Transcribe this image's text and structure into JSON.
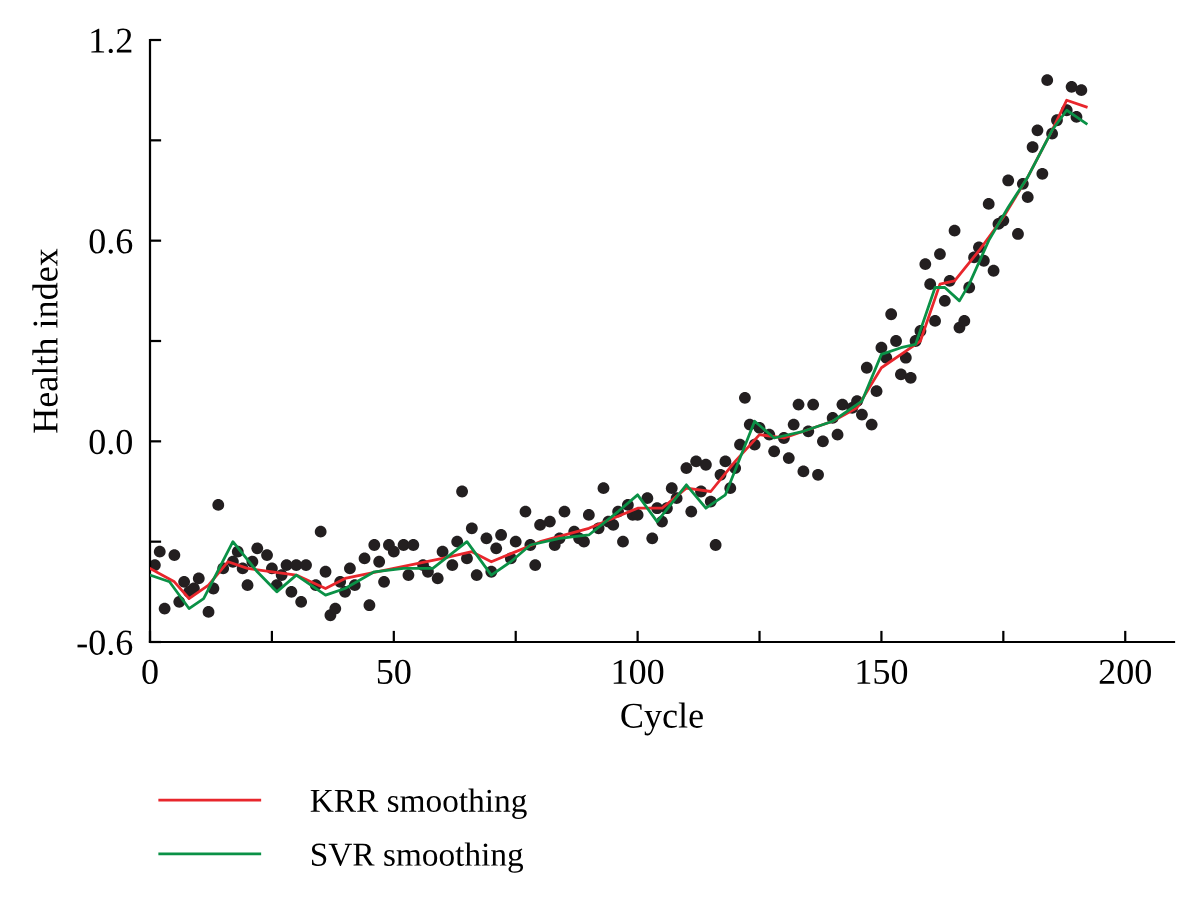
{
  "chart_data": {
    "type": "scatter",
    "xlabel": "Cycle",
    "ylabel": "Health index",
    "xlim": [
      0,
      210
    ],
    "ylim": [
      -0.6,
      1.2
    ],
    "xticks": [
      0,
      {
        "value": 25,
        "label": null
      },
      50,
      {
        "value": 75,
        "label": null
      },
      100,
      {
        "value": 125,
        "label": null
      },
      150,
      {
        "value": 175,
        "label": null
      },
      200
    ],
    "yticks": [
      {
        "value": -0.6,
        "label": "-0.6"
      },
      {
        "value": -0.3,
        "label": null
      },
      {
        "value": 0,
        "label": "0.0"
      },
      {
        "value": 0.3,
        "label": null
      },
      0.6,
      {
        "value": 0.9,
        "label": null
      },
      1.2
    ],
    "grid": false,
    "legend": "bottom left",
    "marker": "circle",
    "series": [
      {
        "color": "#231f20",
        "x": [
          1,
          2,
          3,
          5,
          6,
          7,
          8,
          9,
          10,
          12,
          13,
          14,
          15,
          17,
          18,
          19,
          20,
          21,
          22,
          24,
          25,
          26,
          27,
          28,
          29,
          30,
          31,
          32,
          34,
          35,
          36,
          37,
          38,
          39,
          40,
          41,
          42,
          44,
          45,
          46,
          47,
          48,
          49,
          50,
          52,
          53,
          54,
          56,
          57,
          59,
          60,
          62,
          63,
          64,
          65,
          66,
          67,
          69,
          70,
          71,
          72,
          74,
          75,
          77,
          78,
          79,
          80,
          82,
          83,
          84,
          85,
          87,
          88,
          89,
          90,
          92,
          93,
          94,
          95,
          96,
          97,
          98,
          99,
          100,
          102,
          103,
          104,
          105,
          106,
          107,
          108,
          110,
          111,
          112,
          113,
          114,
          115,
          116,
          117,
          118,
          119,
          120,
          121,
          122,
          123,
          124,
          125,
          127,
          128,
          130,
          131,
          132,
          133,
          134,
          135,
          136,
          137,
          138,
          140,
          141,
          142,
          144,
          145,
          146,
          147,
          148,
          149,
          150,
          151,
          152,
          153,
          154,
          155,
          156,
          157,
          158,
          159,
          160,
          161,
          162,
          163,
          164,
          165,
          166,
          167,
          168,
          169,
          170,
          171,
          172,
          173,
          174,
          175,
          176,
          178,
          179,
          180,
          181,
          182,
          183,
          184,
          185,
          186,
          188,
          189,
          190,
          191
        ],
        "values": [
          -0.37,
          -0.33,
          -0.5,
          -0.34,
          -0.48,
          -0.42,
          -0.45,
          -0.44,
          -0.41,
          -0.51,
          -0.44,
          -0.19,
          -0.38,
          -0.36,
          -0.33,
          -0.38,
          -0.43,
          -0.36,
          -0.32,
          -0.34,
          -0.38,
          -0.43,
          -0.4,
          -0.37,
          -0.45,
          -0.37,
          -0.48,
          -0.37,
          -0.43,
          -0.27,
          -0.39,
          -0.52,
          -0.5,
          -0.42,
          -0.45,
          -0.38,
          -0.43,
          -0.35,
          -0.49,
          -0.31,
          -0.36,
          -0.42,
          -0.31,
          -0.33,
          -0.31,
          -0.4,
          -0.31,
          -0.37,
          -0.39,
          -0.41,
          -0.33,
          -0.37,
          -0.3,
          -0.15,
          -0.35,
          -0.26,
          -0.4,
          -0.29,
          -0.39,
          -0.32,
          -0.28,
          -0.35,
          -0.3,
          -0.21,
          -0.31,
          -0.37,
          -0.25,
          -0.24,
          -0.31,
          -0.29,
          -0.21,
          -0.27,
          -0.29,
          -0.3,
          -0.22,
          -0.26,
          -0.14,
          -0.24,
          -0.25,
          -0.21,
          -0.3,
          -0.19,
          -0.22,
          -0.22,
          -0.17,
          -0.29,
          -0.2,
          -0.24,
          -0.2,
          -0.14,
          -0.17,
          -0.08,
          -0.21,
          -0.06,
          -0.15,
          -0.07,
          -0.18,
          -0.31,
          -0.1,
          -0.06,
          -0.14,
          -0.08,
          -0.01,
          0.13,
          0.05,
          -0.01,
          0.04,
          0.02,
          -0.03,
          0.01,
          -0.05,
          0.05,
          0.11,
          -0.09,
          0.03,
          0.11,
          -0.1,
          0.0,
          0.07,
          0.02,
          0.11,
          0.1,
          0.12,
          0.08,
          0.22,
          0.05,
          0.15,
          0.28,
          0.25,
          0.38,
          0.3,
          0.2,
          0.25,
          0.19,
          0.3,
          0.33,
          0.53,
          0.47,
          0.36,
          0.56,
          0.42,
          0.48,
          0.63,
          0.34,
          0.36,
          0.46,
          0.55,
          0.58,
          0.54,
          0.71,
          0.51,
          0.65,
          0.66,
          0.78,
          0.62,
          0.77,
          0.73,
          0.88,
          0.93,
          0.8,
          1.08,
          0.92,
          0.96,
          0.99,
          1.06,
          0.97,
          1.05
        ]
      },
      {
        "type": "line",
        "name": "KRR smoothing",
        "color": "#e8262c",
        "marker": "none",
        "line_style": "solid",
        "x": [
          0,
          5,
          8,
          12,
          16,
          20,
          30,
          36,
          40,
          50,
          60,
          66,
          70,
          80,
          90,
          100,
          105,
          110,
          115,
          120,
          125,
          130,
          140,
          145,
          150,
          155,
          158,
          162,
          165,
          170,
          175,
          180,
          185,
          188,
          192
        ],
        "values": [
          -0.38,
          -0.42,
          -0.47,
          -0.43,
          -0.36,
          -0.38,
          -0.4,
          -0.44,
          -0.41,
          -0.38,
          -0.35,
          -0.33,
          -0.36,
          -0.3,
          -0.26,
          -0.2,
          -0.2,
          -0.14,
          -0.15,
          -0.06,
          0.02,
          0.01,
          0.06,
          0.1,
          0.22,
          0.27,
          0.3,
          0.47,
          0.48,
          0.57,
          0.67,
          0.79,
          0.93,
          1.02,
          1.0
        ]
      },
      {
        "type": "line",
        "name": "SVR smoothing",
        "color": "#0a9146",
        "marker": "none",
        "line_style": "solid",
        "x": [
          0,
          4,
          8,
          11,
          17,
          22,
          26,
          30,
          36,
          40,
          46,
          52,
          58,
          65,
          70,
          74,
          78,
          84,
          90,
          96,
          100,
          104,
          110,
          114,
          118,
          124,
          128,
          134,
          140,
          146,
          150,
          154,
          157,
          161,
          163,
          166,
          168,
          172,
          176,
          180,
          185,
          188,
          190,
          192
        ],
        "values": [
          -0.4,
          -0.42,
          -0.5,
          -0.47,
          -0.3,
          -0.39,
          -0.45,
          -0.4,
          -0.46,
          -0.44,
          -0.39,
          -0.38,
          -0.38,
          -0.3,
          -0.4,
          -0.36,
          -0.31,
          -0.29,
          -0.28,
          -0.21,
          -0.16,
          -0.24,
          -0.13,
          -0.2,
          -0.16,
          0.06,
          0.01,
          0.03,
          0.06,
          0.12,
          0.26,
          0.28,
          0.29,
          0.46,
          0.46,
          0.42,
          0.47,
          0.6,
          0.7,
          0.79,
          0.93,
          0.99,
          0.97,
          0.95
        ]
      }
    ]
  }
}
